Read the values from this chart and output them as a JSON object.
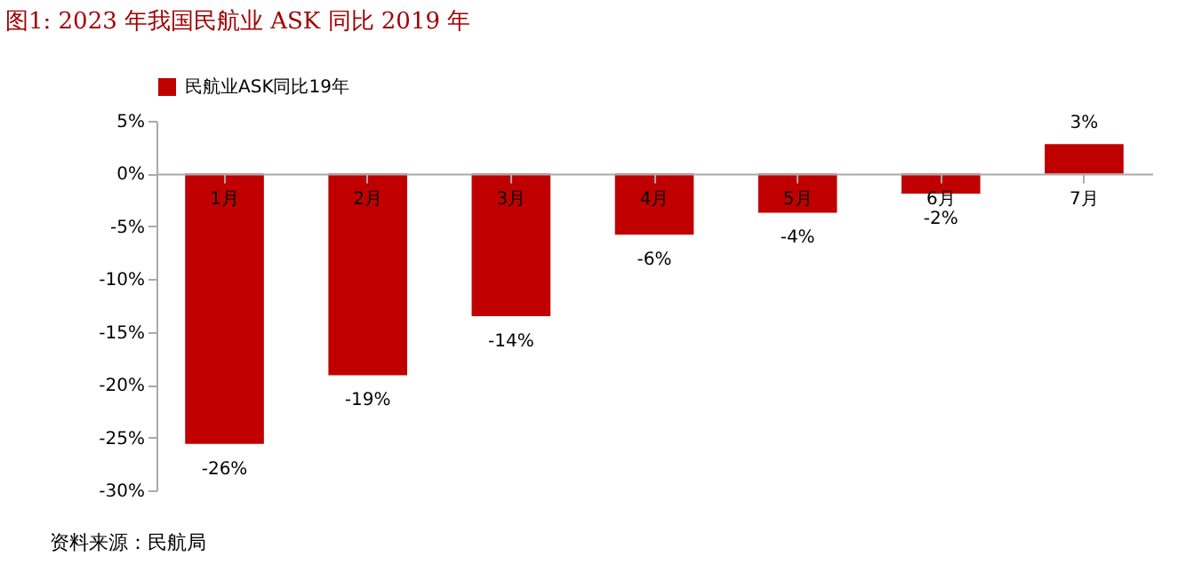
{
  "chart_data": {
    "type": "bar",
    "title": "图1:   2023 年我国民航业 ASK 同比 2019 年",
    "categories": [
      "1月",
      "2月",
      "3月",
      "4月",
      "5月",
      "6月",
      "7月"
    ],
    "series": [
      {
        "name": "民航业ASK同比19年",
        "color": "#c00000",
        "values": [
          -25.6,
          -19.1,
          -13.5,
          -5.8,
          -3.7,
          -1.9,
          2.8
        ],
        "value_labels": [
          "-26%",
          "-19%",
          "-14%",
          "-6%",
          "-4%",
          "-2%",
          "3%"
        ]
      }
    ],
    "ylim": [
      -30,
      5
    ],
    "yticks": [
      {
        "value": -30,
        "label": "-30%"
      },
      {
        "value": -25,
        "label": "-25%"
      },
      {
        "value": -20,
        "label": "-20%"
      },
      {
        "value": -15,
        "label": "-15%"
      },
      {
        "value": -10,
        "label": "-10%"
      },
      {
        "value": -5,
        "label": "-5%"
      },
      {
        "value": 0,
        "label": "0%"
      },
      {
        "value": 5,
        "label": "5%"
      }
    ],
    "grid": false,
    "legend": "top",
    "annotations": [
      "资料来源：民航局"
    ]
  }
}
